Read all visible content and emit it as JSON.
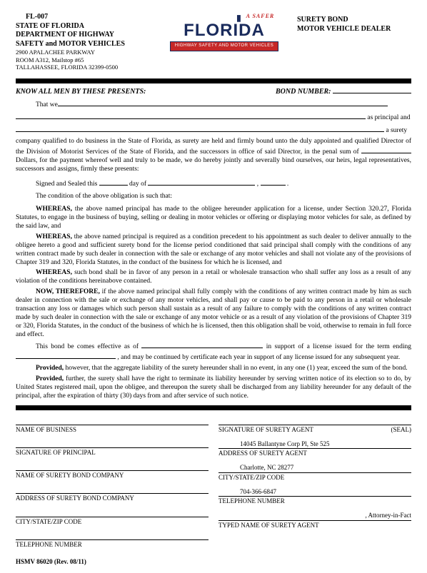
{
  "header": {
    "form_code": "FL-007",
    "agency1": "STATE OF FLORIDA",
    "agency2": "DEPARTMENT OF HIGHWAY",
    "agency3": "SAFETY and MOTOR VEHICLES",
    "addr1": "2900 APALACHEE PARKWAY",
    "addr2": "ROOM A312, Mailstop #65",
    "addr3": "TALLAHASSEE, FLORIDA 32399-0500",
    "logo_safer": "A SAFER",
    "logo_word": "FLORIDA",
    "logo_tagline": "HIGHWAY SAFETY AND MOTOR VEHICLES",
    "right1": "SURETY BOND",
    "right2": "MOTOR VEHICLE DEALER"
  },
  "preamble": {
    "know_all": "KNOW ALL MEN BY THESE PRESENTS:",
    "bond_label": "BOND NUMBER:",
    "that_we": "That we",
    "tail1": " as principal and",
    "tail2": " a surety",
    "body1": "company qualified to do business in the State of Florida, as surety are held and firmly bound unto the duly appointed and qualified Director of the  Division of  Motorist Services of the State of Florida, and the successors in office of  said Director, in the penal sum of ",
    "body1b": " Dollars, for the payment whereof well and truly to be made, we do hereby jointly and severally bind ourselves, our heirs, legal representatives, successors and assigns, firmly these presents:",
    "signed": "Signed and Sealed this ",
    "day_of": " day of ",
    "comma": " , ",
    "period": " .",
    "condition": "The condition of the above obligation is such that:"
  },
  "whereas": {
    "w1_label": "WHEREAS,",
    "w1": " the above named principal has made to the obligee hereunder application for a license, under Section 320.27, Florida Statutes, to engage in the business of buying, selling or dealing in motor vehicles or offering or displaying motor vehicles for sale, as defined by the said law, and",
    "w2_label": "WHEREAS,",
    "w2": " the above named principal is required as a condition precedent to his appointment as such dealer to deliver annually to the obligee hereto a good and sufficient surety bond for the license period conditioned that said principal shall comply with the conditions of any written contract made by such dealer in connection with the sale or exchange of any motor vehicles and shall not violate any of the provisions of Chapter 319 and 320, Florida Statutes, in the conduct of the business for which he is licensed, and",
    "w3_label": "WHEREAS,",
    "w3": " such bond shall be in favor of any person in a retail or wholesale transaction who shall suffer any loss as a result of any violation of the conditions hereinabove contained.",
    "now_label": "NOW, THEREFORE,",
    "now": " if the above named principal shall fully comply with the conditions of any written contract made by him as such dealer in connection with the sale or exchange of any motor vehicles, and shall pay or cause to be paid to any person in a retail or wholesale transaction any loss or damages which such person shall sustain as a result of any failure to comply with the conditions of any written contract made by such dealer in connection with the sale or exchange of any motor vehicle or as a result of any violation of the provisions of Chapter 319 or 320, Florida Statutes, in the conduct of the business of which he is licensed, then this obligation shall be void, otherwise to remain in full force and effect.",
    "eff1": "This bond be comes effective as of ",
    "eff2": " in support of a license issued for the term ending ",
    "eff3": ", and may be continued by certificate each year in support of any license issued for any subsequent year.",
    "prov1_label": "Provided,",
    "prov1": " however, that the aggregate liability of the surety hereunder shall in no event, in any one (1) year, exceed the sum of the bond.",
    "prov2_label": "Provided,",
    "prov2": " further, the surety shall have the right to terminate its liability hereunder by serving written notice of its election so to do, by United States registered mail, upon the obligee, and thereupon the surety shall be discharged from any liability hereunder for any default of the principal, after the expiration of thirty (30) days from and after service of such notice."
  },
  "sig": {
    "left": [
      {
        "val": "",
        "lbl": "NAME OF BUSINESS"
      },
      {
        "val": "",
        "lbl": "SIGNATURE OF PRINCIPAL"
      },
      {
        "val": "",
        "lbl": "NAME OF SURETY BOND COMPANY"
      },
      {
        "val": "",
        "lbl": "ADDRESS OF SURETY BOND COMPANY"
      },
      {
        "val": "",
        "lbl": "CITY/STATE/ZIP CODE"
      },
      {
        "val": "",
        "lbl": "TELEPHONE NUMBER"
      }
    ],
    "right": [
      {
        "val": "",
        "lbl": "SIGNATURE OF SURETY AGENT"
      },
      {
        "val": "14045 Ballantyne Corp Pl, Ste 525",
        "lbl": "ADDRESS OF SURETY AGENT"
      },
      {
        "val": "Charlotte, NC 28277",
        "lbl": "CITY/STATE/ZIP CODE"
      },
      {
        "val": "704-366-6847",
        "lbl": "TELEPHONE NUMBER"
      },
      {
        "val": ", Attorney-in-Fact",
        "lbl": "TYPED NAME OF SURETY AGENT",
        "attorney": true
      }
    ],
    "seal": "(SEAL)"
  },
  "footer": "HSMV 86020 (Rev. 08/11)"
}
